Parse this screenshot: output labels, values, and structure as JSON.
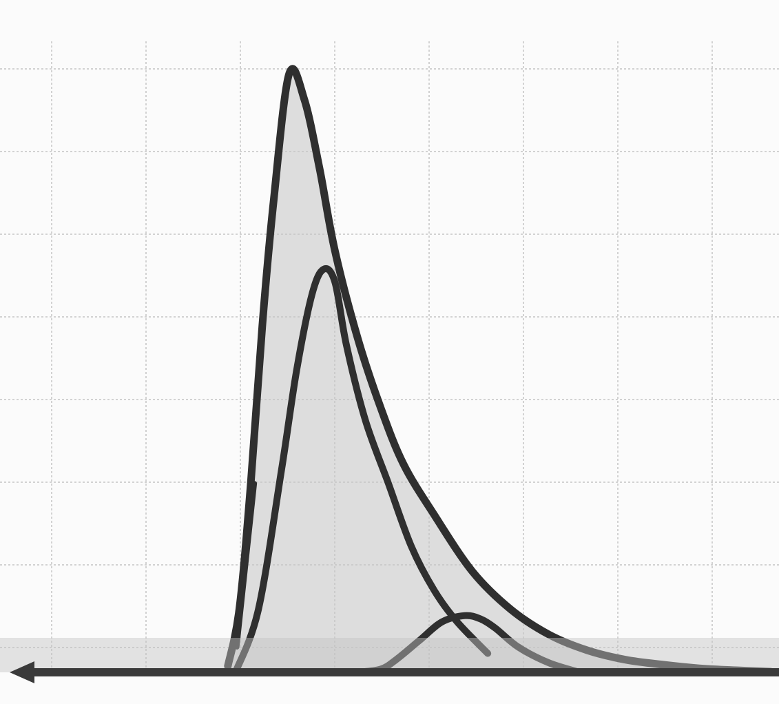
{
  "chart_data": {
    "type": "line",
    "title": "",
    "xlabel": "",
    "ylabel": "",
    "xlim": [
      0,
      100
    ],
    "ylim": [
      0,
      100
    ],
    "grid": true,
    "legend": "none",
    "colors": {
      "background": "#fbfbfb",
      "grid": "#d2d2d2",
      "shading": "#c4c4c4",
      "line": "#2f2f2f",
      "baseline": "#3a3a3a"
    },
    "series": [
      {
        "x": [
          28,
          29.5,
          31,
          32.5,
          34,
          36,
          38,
          40,
          42,
          45,
          48,
          51,
          55,
          60,
          65,
          70,
          75,
          80,
          85,
          90,
          95,
          99
        ],
        "y": [
          1,
          10,
          30,
          55,
          75,
          95,
          91,
          80,
          67,
          53,
          42,
          33,
          25,
          16,
          10,
          6,
          3.5,
          2,
          1.2,
          0.6,
          0.3,
          0.1
        ]
      },
      {
        "x": [
          29,
          32,
          35,
          37,
          39,
          40.5,
          42,
          43.5,
          46,
          49,
          52,
          55,
          58,
          62
        ],
        "y": [
          0,
          10,
          32,
          48,
          60,
          64,
          62,
          52,
          40,
          30,
          20,
          13,
          8,
          3
        ]
      },
      {
        "x": [
          45,
          48,
          50,
          53,
          56,
          59,
          61,
          63,
          66,
          70,
          74
        ],
        "y": [
          0,
          0.5,
          2,
          5,
          8,
          9,
          8.5,
          7,
          4,
          1.5,
          0
        ]
      }
    ]
  }
}
